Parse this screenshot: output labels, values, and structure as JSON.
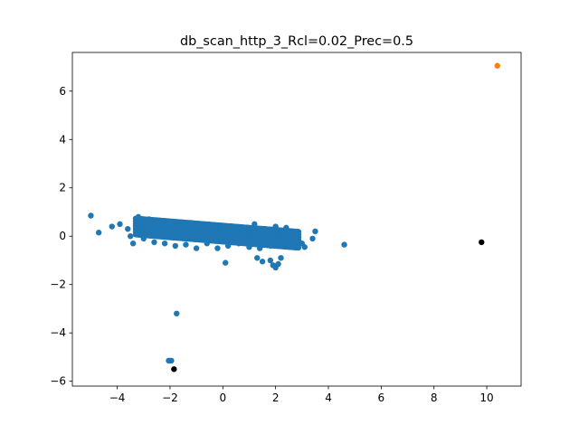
{
  "chart_data": {
    "type": "scatter",
    "title": "db_scan_http_3_Rcl=0.02_Prec=0.5",
    "xlabel": "",
    "ylabel": "",
    "xlim": [
      -5.7,
      11.3
    ],
    "ylim": [
      -6.2,
      7.6
    ],
    "x_ticks": [
      -4,
      -2,
      0,
      2,
      4,
      6,
      8,
      10
    ],
    "x_tick_labels": [
      "−4",
      "−2",
      "0",
      "2",
      "4",
      "6",
      "8",
      "10"
    ],
    "y_ticks": [
      -6,
      -4,
      -2,
      0,
      2,
      4,
      6
    ],
    "y_tick_labels": [
      "−6",
      "−4",
      "−2",
      "0",
      "2",
      "4",
      "6"
    ],
    "grid": false,
    "colors": {
      "cluster": "#1f77b4",
      "anomaly_cluster": "#ff7f0e",
      "noise": "#000000"
    },
    "series": [
      {
        "color": "#1f77b4",
        "points": [
          [
            -5.0,
            0.85
          ],
          [
            -4.7,
            0.15
          ],
          [
            -4.2,
            0.4
          ],
          [
            -3.9,
            0.5
          ],
          [
            -3.6,
            0.3
          ],
          [
            -3.5,
            0.0
          ],
          [
            -3.4,
            -0.3
          ],
          [
            -3.2,
            0.8
          ],
          [
            -3.0,
            -0.1
          ],
          [
            -2.8,
            0.7
          ],
          [
            -2.6,
            -0.25
          ],
          [
            -2.4,
            0.6
          ],
          [
            -2.2,
            -0.3
          ],
          [
            -2.0,
            0.5
          ],
          [
            -1.8,
            -0.4
          ],
          [
            -1.6,
            0.4
          ],
          [
            -1.4,
            -0.35
          ],
          [
            -1.2,
            0.55
          ],
          [
            -1.0,
            -0.5
          ],
          [
            -0.8,
            0.5
          ],
          [
            -0.6,
            -0.3
          ],
          [
            -0.4,
            0.45
          ],
          [
            -0.2,
            -0.5
          ],
          [
            0.0,
            0.4
          ],
          [
            0.2,
            -0.4
          ],
          [
            0.4,
            0.35
          ],
          [
            0.6,
            -0.3
          ],
          [
            0.8,
            0.3
          ],
          [
            1.0,
            -0.45
          ],
          [
            1.2,
            0.5
          ],
          [
            1.4,
            -0.5
          ],
          [
            1.6,
            0.3
          ],
          [
            1.8,
            -0.4
          ],
          [
            2.0,
            0.4
          ],
          [
            2.2,
            -0.35
          ],
          [
            2.4,
            0.35
          ],
          [
            2.6,
            -0.1
          ],
          [
            2.8,
            0.1
          ],
          [
            3.0,
            -0.3
          ],
          [
            3.1,
            -0.45
          ],
          [
            3.4,
            -0.1
          ],
          [
            3.5,
            0.2
          ],
          [
            4.6,
            -0.35
          ],
          [
            0.1,
            -1.1
          ],
          [
            1.3,
            -0.9
          ],
          [
            1.5,
            -1.05
          ],
          [
            1.8,
            -1.0
          ],
          [
            1.9,
            -1.2
          ],
          [
            2.0,
            -1.3
          ],
          [
            2.1,
            -1.15
          ],
          [
            2.2,
            -0.9
          ],
          [
            -1.75,
            -3.2
          ],
          [
            -2.0,
            -5.15
          ],
          [
            -1.95,
            -5.15
          ],
          [
            -2.05,
            -5.15
          ]
        ]
      },
      {
        "color": "#ff7f0e",
        "points": [
          [
            10.4,
            7.05
          ]
        ]
      },
      {
        "color": "#000000",
        "points": [
          [
            9.8,
            -0.25
          ],
          [
            -1.85,
            -5.5
          ]
        ]
      }
    ]
  }
}
